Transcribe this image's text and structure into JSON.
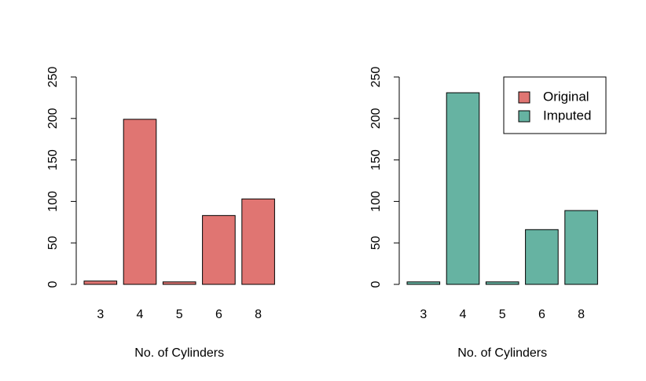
{
  "chart_data": [
    {
      "type": "bar",
      "categories": [
        "3",
        "4",
        "5",
        "6",
        "8"
      ],
      "series": [
        {
          "values": [
            4,
            199,
            3,
            83,
            103
          ],
          "color": "#E07572"
        }
      ],
      "xlabel": "No. of Cylinders",
      "ylabel": "",
      "ylim": [
        0,
        250
      ],
      "yticks": [
        "0",
        "50",
        "100",
        "150",
        "200",
        "250"
      ],
      "grid": false,
      "legend": null
    },
    {
      "type": "bar",
      "categories": [
        "3",
        "4",
        "5",
        "6",
        "8"
      ],
      "series": [
        {
          "values": [
            3,
            231,
            3,
            66,
            89
          ],
          "color": "#66B3A2"
        }
      ],
      "xlabel": "No. of Cylinders",
      "ylabel": "",
      "ylim": [
        0,
        250
      ],
      "yticks": [
        "0",
        "50",
        "100",
        "150",
        "200",
        "250"
      ],
      "grid": false,
      "legend": {
        "position": "top-right",
        "entries": [
          {
            "label": "Original",
            "color": "#E07572"
          },
          {
            "label": "Imputed",
            "color": "#66B3A2"
          }
        ]
      }
    }
  ]
}
